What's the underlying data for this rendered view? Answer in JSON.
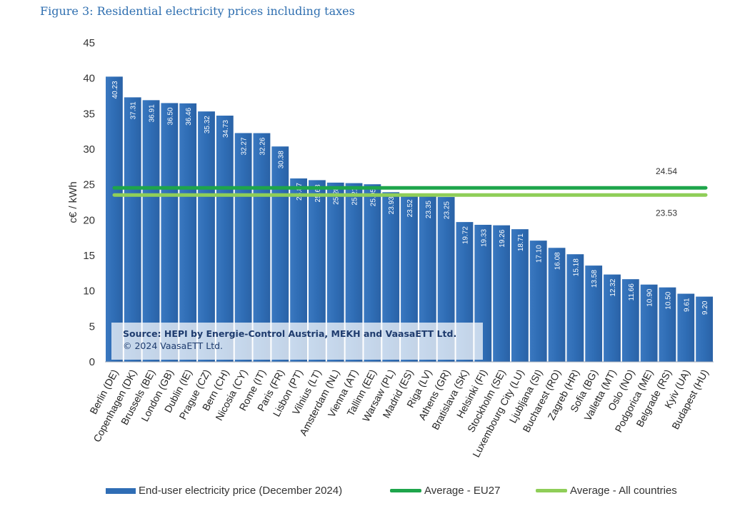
{
  "figure_title": "Figure 3: Residential electricity prices including taxes",
  "source": {
    "line1": "Source: HEPI by Energie-Control Austria, MEKH and VaasaETT Ltd.",
    "line2": "© 2024 VaasaETT Ltd."
  },
  "colors": {
    "bar": "#2f6db5",
    "avg_eu27": "#1ea54b",
    "avg_all": "#8fce58"
  },
  "chart_data": {
    "type": "bar",
    "title": "Figure 3: Residential electricity prices including taxes",
    "ylabel": "c€ / kWh",
    "xlabel": "",
    "ylim": [
      0,
      45
    ],
    "yticks": [
      0,
      5,
      10,
      15,
      20,
      25,
      30,
      35,
      40,
      45
    ],
    "grid": false,
    "legend_position": "bottom",
    "categories": [
      "Berlin (DE)",
      "Copenhagen (DK)",
      "Brussels (BE)",
      "London (GB)",
      "Dublin (IE)",
      "Prague (CZ)",
      "Bern (CH)",
      "Nicosia (CY)",
      "Rome (IT)",
      "Paris (FR)",
      "Lisbon (PT)",
      "Vilnius (LT)",
      "Amsterdam (NL)",
      "Vienna (AT)",
      "Tallinn (EE)",
      "Warsaw (PL)",
      "Madrid (ES)",
      "Riga (LV)",
      "Athens (GR)",
      "Bratislava (SK)",
      "Helsinki (FI)",
      "Stockholm (SE)",
      "Luxembourg City (LU)",
      "Ljubljana (SI)",
      "Bucharest (RO)",
      "Zagreb (HR)",
      "Sofia (BG)",
      "Valletta (MT)",
      "Oslo (NO)",
      "Podgorica (ME)",
      "Belgrade (RS)",
      "Kyiv (UA)",
      "Budapest (HU)"
    ],
    "series": [
      {
        "name": "End-user electricity price (December 2024)",
        "values": [
          40.23,
          37.31,
          36.91,
          36.5,
          36.46,
          35.32,
          34.73,
          32.27,
          32.26,
          30.38,
          25.87,
          25.63,
          25.28,
          25.21,
          25.05,
          23.93,
          23.52,
          23.35,
          23.25,
          19.72,
          19.33,
          19.26,
          18.71,
          17.1,
          16.08,
          15.18,
          13.58,
          12.32,
          11.66,
          10.9,
          10.5,
          9.61,
          9.2
        ]
      }
    ],
    "data_labels": [
      "40.23",
      "37.31",
      "36.91",
      "36.50",
      "36.46",
      "35.32",
      "34.73",
      "32.27",
      "32.26",
      "30.38",
      "25.87",
      "25.63",
      "25.28",
      "25.21",
      "25.05",
      "23.93",
      "23.52",
      "23.35",
      "23.25",
      "19.72",
      "19.33",
      "19.26",
      "18.71",
      "17.10",
      "16.08",
      "15.18",
      "13.58",
      "12.32",
      "11.66",
      "10.90",
      "10.50",
      "9.61",
      "9.20"
    ],
    "reference_lines": [
      {
        "name": "Average - EU27",
        "value": 24.54,
        "label": "24.54"
      },
      {
        "name": "Average - All countries",
        "value": 23.53,
        "label": "23.53"
      }
    ]
  },
  "legend": {
    "bar_label": "End-user electricity price (December 2024)",
    "eu27_label": "Average - EU27",
    "all_label": "Average - All countries"
  }
}
